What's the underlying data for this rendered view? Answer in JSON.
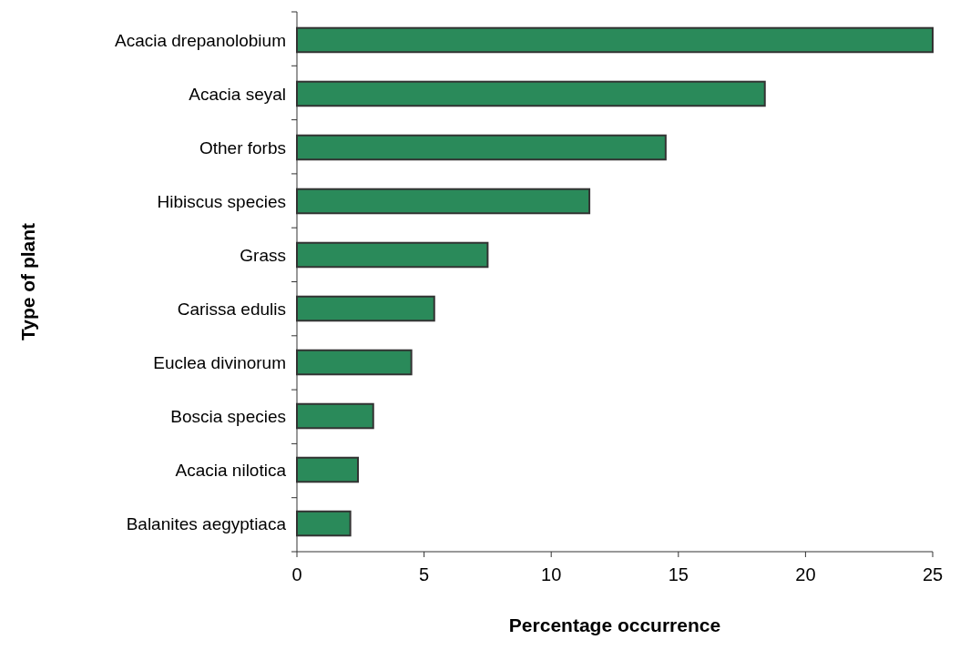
{
  "chart_data": {
    "type": "bar",
    "orientation": "horizontal",
    "xlabel": "Percentage occurrence",
    "ylabel": "Type of plant",
    "categories": [
      "Acacia drepanolobium",
      "Acacia seyal",
      "Other forbs",
      "Hibiscus species",
      "Grass",
      "Carissa edulis",
      "Euclea divinorum",
      "Boscia species",
      "Acacia nilotica",
      "Balanites aegyptiaca"
    ],
    "values": [
      25.0,
      18.4,
      14.5,
      11.5,
      7.5,
      5.4,
      4.5,
      3.0,
      2.4,
      2.1
    ],
    "color": "#2a8a5a",
    "xlim": [
      0,
      25
    ],
    "xticks": [
      0,
      5,
      10,
      15,
      20,
      25
    ],
    "grid": false
  }
}
